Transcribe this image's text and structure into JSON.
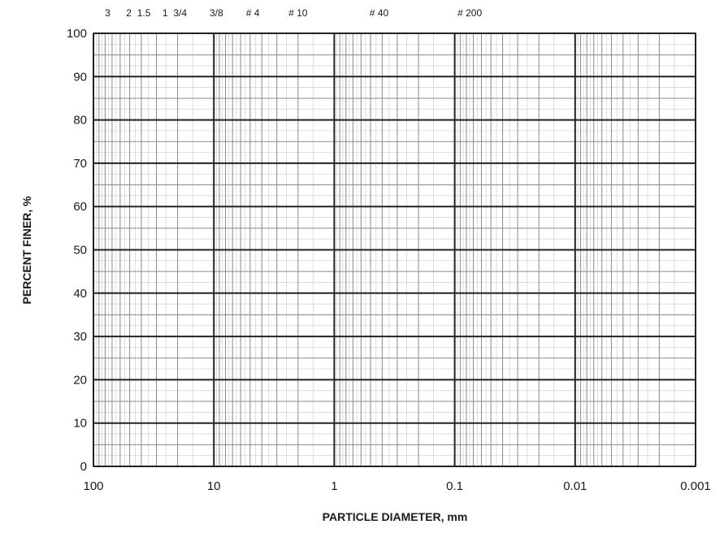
{
  "chart_data": {
    "type": "scatter",
    "title": "",
    "xlabel": "PARTICLE DIAMETER, mm",
    "ylabel": "PERCENT FINER, %",
    "xscale": "log",
    "x_reversed": true,
    "xlim": [
      100,
      0.001
    ],
    "ylim": [
      0,
      100
    ],
    "grid": true,
    "legend": "none",
    "x_ticks": [
      {
        "value": 100,
        "label": "100"
      },
      {
        "value": 10,
        "label": "10"
      },
      {
        "value": 1,
        "label": "1"
      },
      {
        "value": 0.1,
        "label": "0.1"
      },
      {
        "value": 0.01,
        "label": "0.01"
      },
      {
        "value": 0.001,
        "label": "0.001"
      }
    ],
    "y_ticks": [
      {
        "value": 0,
        "label": "0"
      },
      {
        "value": 10,
        "label": "10"
      },
      {
        "value": 20,
        "label": "20"
      },
      {
        "value": 30,
        "label": "30"
      },
      {
        "value": 40,
        "label": "40"
      },
      {
        "value": 50,
        "label": "50"
      },
      {
        "value": 60,
        "label": "60"
      },
      {
        "value": 70,
        "label": "70"
      },
      {
        "value": 80,
        "label": "80"
      },
      {
        "value": 90,
        "label": "90"
      },
      {
        "value": 100,
        "label": "100"
      }
    ],
    "sieve_ticks": [
      {
        "label": "3",
        "value": 76.2
      },
      {
        "label": "2",
        "value": 50.8
      },
      {
        "label": "1.5",
        "value": 38.1
      },
      {
        "label": "1",
        "value": 25.4
      },
      {
        "label": "3/4",
        "value": 19.05
      },
      {
        "label": "3/8",
        "value": 9.525
      },
      {
        "label": "# 4",
        "value": 4.75
      },
      {
        "label": "# 10",
        "value": 2.0
      },
      {
        "label": "# 40",
        "value": 0.425
      },
      {
        "label": "# 200",
        "value": 0.075
      }
    ],
    "series": [],
    "colors": {
      "major_grid": "#222222",
      "minor_grid": "#8a8a8a",
      "fine_grid": "#cfcfcf",
      "text": "#1a1a1a"
    }
  }
}
